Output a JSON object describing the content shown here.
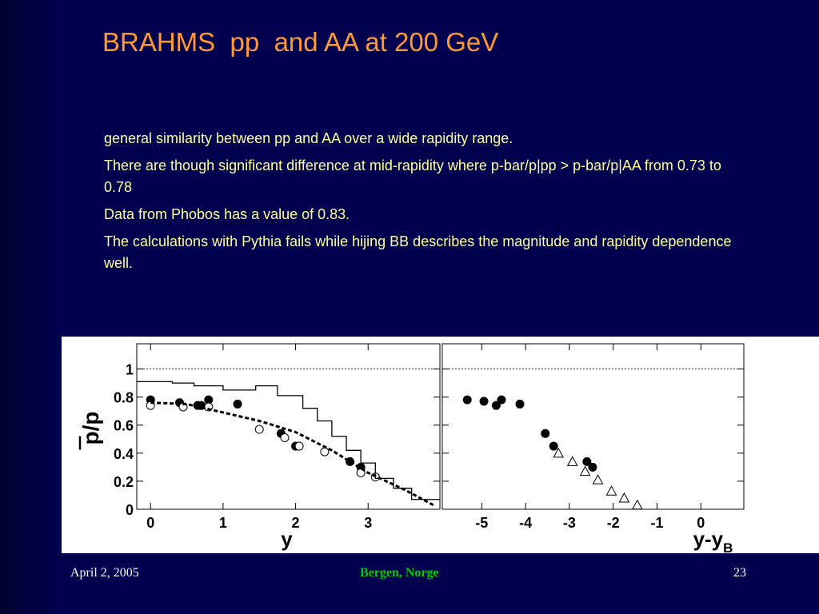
{
  "slide": {
    "title": "BRAHMS  pp  and AA at 200 GeV",
    "bullets": [
      "general similarity between pp and AA over a wide rapidity range.",
      "There are though significant difference at mid-rapidity where p-bar/p|pp > p-bar/p|AA from 0.73 to 0.78",
      "Data from Phobos has a value of 0.83.",
      "The calculations with Pythia fails while hijing BB describes the magnitude and rapidity dependence well."
    ],
    "footer": {
      "date": "April 2, 2005",
      "place": "Bergen, Norge",
      "page": "23"
    }
  },
  "chart_data": [
    {
      "type": "scatter",
      "ylabel": "p/p",
      "xlabel": "y",
      "xlim": [
        -0.19,
        3.99
      ],
      "ylim": [
        0,
        1.18
      ],
      "xticks": [
        0,
        1,
        2,
        3
      ],
      "yticks": [
        0,
        0.2,
        0.4,
        0.6,
        0.8,
        1
      ],
      "hline": 1,
      "series": [
        {
          "marker": "filled-circle",
          "color": "#000000",
          "x": [
            0,
            0.4,
            0.65,
            0.7,
            0.8,
            1.2,
            1.8,
            2.0,
            2.75,
            2.9
          ],
          "values": [
            0.78,
            0.76,
            0.74,
            0.74,
            0.78,
            0.75,
            0.54,
            0.45,
            0.34,
            0.3
          ]
        },
        {
          "marker": "open-circle",
          "color": "#000000",
          "x": [
            0,
            0.45,
            0.8,
            1.5,
            1.85,
            2.05,
            2.4,
            2.9,
            3.1
          ],
          "values": [
            0.74,
            0.73,
            0.73,
            0.57,
            0.51,
            0.45,
            0.41,
            0.26,
            0.23
          ]
        },
        {
          "marker": "step",
          "color": "#000000",
          "x": [
            -0.19,
            0.3,
            0.3,
            0.6,
            0.6,
            1.0,
            1.0,
            1.45,
            1.45,
            1.75,
            1.75,
            2.1,
            2.1,
            2.3,
            2.3,
            2.5,
            2.5,
            2.7,
            2.7,
            2.9,
            2.9,
            3.1,
            3.1,
            3.35,
            3.35,
            3.6,
            3.6,
            3.99
          ],
          "values": [
            0.91,
            0.91,
            0.9,
            0.9,
            0.88,
            0.88,
            0.85,
            0.85,
            0.88,
            0.88,
            0.81,
            0.81,
            0.72,
            0.72,
            0.63,
            0.63,
            0.52,
            0.52,
            0.42,
            0.42,
            0.33,
            0.33,
            0.22,
            0.22,
            0.15,
            0.15,
            0.07,
            0.07
          ]
        },
        {
          "marker": "dashed",
          "color": "#000000",
          "x": [
            0,
            0.5,
            1,
            1.5,
            2,
            2.5,
            3,
            3.5,
            3.9
          ],
          "values": [
            0.76,
            0.75,
            0.69,
            0.63,
            0.55,
            0.42,
            0.26,
            0.14,
            0.03
          ]
        }
      ]
    },
    {
      "type": "scatter",
      "xlabel": "y-y",
      "xlabel_subscript": "B",
      "xlim": [
        -5.9,
        0.98
      ],
      "ylim": [
        0,
        1.18
      ],
      "xticks": [
        -5,
        -4,
        -3,
        -2,
        -1,
        0
      ],
      "yticks": [
        0,
        0.2,
        0.4,
        0.6,
        0.8,
        1
      ],
      "hline": 1,
      "series": [
        {
          "marker": "filled-circle",
          "color": "#000000",
          "x": [
            -5.33,
            -4.95,
            -4.67,
            -4.55,
            -4.13,
            -3.55,
            -3.36,
            -2.6,
            -2.47
          ],
          "values": [
            0.78,
            0.77,
            0.74,
            0.78,
            0.75,
            0.54,
            0.45,
            0.34,
            0.3
          ]
        },
        {
          "marker": "open-triangle",
          "color": "#000000",
          "x": [
            -3.25,
            -2.93,
            -2.64,
            -2.35,
            -2.04,
            -1.75,
            -1.45
          ],
          "values": [
            0.4,
            0.34,
            0.27,
            0.21,
            0.13,
            0.08,
            0.03
          ]
        }
      ]
    }
  ]
}
